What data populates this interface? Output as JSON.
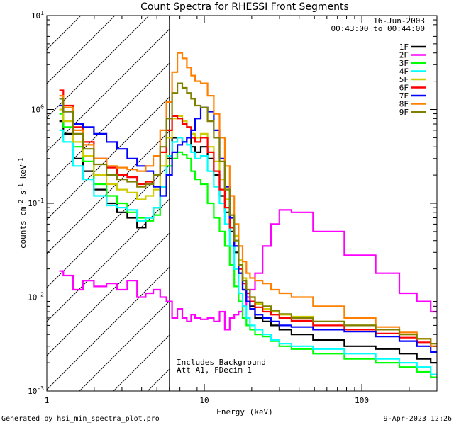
{
  "chart_data": {
    "type": "line",
    "title": "Count Spectra for RHESSI Front Segments",
    "xlabel": "Energy (keV)",
    "ylabel_parts": {
      "base": "counts cm",
      "exp1": "-2",
      "mid": " s",
      "exp2": "-1",
      "unit": " keV",
      "exp3": "-1"
    },
    "x_scale": "log",
    "y_scale": "log",
    "xlim": [
      1,
      300
    ],
    "ylim": [
      0.001,
      10
    ],
    "x_ticks": [
      {
        "v": 1,
        "label": "1"
      },
      {
        "v": 10,
        "label": "10"
      },
      {
        "v": 100,
        "label": "100"
      }
    ],
    "y_ticks": [
      {
        "v": 0.001,
        "base": "10",
        "exp": "-3"
      },
      {
        "v": 0.01,
        "base": "10",
        "exp": "-2"
      },
      {
        "v": 0.1,
        "base": "10",
        "exp": "-1"
      },
      {
        "v": 1,
        "base": "10",
        "exp": "0"
      },
      {
        "v": 10,
        "base": "10",
        "exp": "1"
      }
    ],
    "shaded_region_x": [
      1,
      6
    ],
    "threshold_x": 6,
    "annotations": {
      "date": "16-Jun-2003",
      "time_range": "00:43:00 to 00:44:00",
      "info_line1": "Includes Background",
      "info_line2": "Att A1, FDecim 1"
    },
    "series": [
      {
        "name": "1F",
        "color": "#000000",
        "x": [
          1.2,
          1.35,
          1.6,
          1.8,
          2.2,
          2.6,
          3.0,
          3.5,
          4.0,
          4.5,
          5.0,
          5.5,
          6.0,
          6.5,
          7.0,
          7.5,
          8.0,
          8.5,
          9.0,
          10,
          11,
          12,
          13,
          14,
          15,
          16,
          17,
          18,
          19,
          20,
          22,
          25,
          28,
          32,
          40,
          60,
          100,
          150,
          200,
          250,
          300
        ],
        "y": [
          0.75,
          0.55,
          0.3,
          0.22,
          0.14,
          0.1,
          0.08,
          0.07,
          0.055,
          0.07,
          0.09,
          0.15,
          0.3,
          0.5,
          0.5,
          0.45,
          0.5,
          0.4,
          0.35,
          0.4,
          0.3,
          0.2,
          0.12,
          0.08,
          0.05,
          0.03,
          0.018,
          0.012,
          0.009,
          0.008,
          0.006,
          0.0055,
          0.005,
          0.0045,
          0.004,
          0.0035,
          0.003,
          0.0028,
          0.0025,
          0.0022,
          0.002
        ]
      },
      {
        "name": "2F",
        "color": "#ff00ff",
        "x": [
          1.2,
          1.35,
          1.6,
          1.8,
          2.2,
          2.6,
          3.0,
          3.5,
          4.0,
          4.5,
          5.0,
          5.5,
          6.0,
          6.5,
          7.0,
          7.5,
          8.0,
          8.5,
          9.0,
          10,
          11,
          12,
          13,
          14,
          15,
          16,
          17,
          18,
          19,
          20,
          22,
          25,
          28,
          32,
          40,
          60,
          100,
          150,
          200,
          250,
          300
        ],
        "y": [
          0.019,
          0.017,
          0.012,
          0.015,
          0.013,
          0.014,
          0.012,
          0.015,
          0.01,
          0.011,
          0.012,
          0.01,
          0.009,
          0.006,
          0.0075,
          0.006,
          0.0055,
          0.0065,
          0.006,
          0.0058,
          0.006,
          0.0055,
          0.007,
          0.0045,
          0.006,
          0.0065,
          0.007,
          0.008,
          0.01,
          0.012,
          0.018,
          0.035,
          0.06,
          0.085,
          0.08,
          0.05,
          0.028,
          0.018,
          0.011,
          0.009,
          0.007
        ]
      },
      {
        "name": "3F",
        "color": "#00ff00",
        "x": [
          1.2,
          1.35,
          1.6,
          1.8,
          2.2,
          2.6,
          3.0,
          3.5,
          4.0,
          4.5,
          5.0,
          5.5,
          6.0,
          6.5,
          7.0,
          7.5,
          8.0,
          8.5,
          9.0,
          10,
          11,
          12,
          13,
          14,
          15,
          16,
          17,
          18,
          19,
          20,
          22,
          25,
          28,
          32,
          40,
          60,
          100,
          150,
          200,
          250,
          300
        ],
        "y": [
          0.9,
          0.65,
          0.4,
          0.28,
          0.16,
          0.12,
          0.1,
          0.08,
          0.07,
          0.065,
          0.075,
          0.12,
          0.25,
          0.3,
          0.35,
          0.33,
          0.3,
          0.22,
          0.18,
          0.16,
          0.1,
          0.07,
          0.05,
          0.035,
          0.022,
          0.013,
          0.009,
          0.006,
          0.005,
          0.0045,
          0.004,
          0.0038,
          0.0034,
          0.003,
          0.0028,
          0.0025,
          0.0022,
          0.002,
          0.0018,
          0.0016,
          0.0014
        ]
      },
      {
        "name": "4F",
        "color": "#00ffff",
        "x": [
          1.2,
          1.35,
          1.6,
          1.8,
          2.2,
          2.6,
          3.0,
          3.5,
          4.0,
          4.5,
          5.0,
          5.5,
          6.0,
          6.5,
          7.0,
          7.5,
          8.0,
          8.5,
          9.0,
          10,
          11,
          12,
          13,
          14,
          15,
          16,
          17,
          18,
          19,
          20,
          22,
          25,
          28,
          32,
          40,
          60,
          100,
          150,
          200,
          250,
          300
        ],
        "y": [
          0.6,
          0.45,
          0.25,
          0.18,
          0.12,
          0.095,
          0.09,
          0.085,
          0.065,
          0.07,
          0.09,
          0.15,
          0.32,
          0.45,
          0.5,
          0.45,
          0.42,
          0.35,
          0.3,
          0.32,
          0.22,
          0.15,
          0.1,
          0.06,
          0.035,
          0.02,
          0.011,
          0.008,
          0.006,
          0.005,
          0.0045,
          0.004,
          0.0035,
          0.0032,
          0.003,
          0.0028,
          0.0025,
          0.0022,
          0.002,
          0.0018,
          0.0015
        ]
      },
      {
        "name": "5F",
        "color": "#cccc00",
        "x": [
          1.2,
          1.35,
          1.6,
          1.8,
          2.2,
          2.6,
          3.0,
          3.5,
          4.0,
          4.5,
          5.0,
          5.5,
          6.0,
          6.5,
          7.0,
          7.5,
          8.0,
          8.5,
          9.0,
          10,
          11,
          12,
          13,
          14,
          15,
          16,
          17,
          18,
          19,
          20,
          22,
          25,
          28,
          32,
          40,
          60,
          100,
          150,
          200,
          250,
          300
        ],
        "y": [
          1.0,
          0.75,
          0.45,
          0.32,
          0.2,
          0.16,
          0.14,
          0.13,
          0.11,
          0.12,
          0.14,
          0.25,
          0.5,
          0.8,
          0.85,
          0.75,
          0.65,
          0.55,
          0.5,
          0.55,
          0.4,
          0.28,
          0.18,
          0.11,
          0.07,
          0.045,
          0.025,
          0.016,
          0.012,
          0.01,
          0.0085,
          0.0075,
          0.007,
          0.0065,
          0.0062,
          0.0055,
          0.005,
          0.0045,
          0.004,
          0.0036,
          0.0032
        ]
      },
      {
        "name": "6F",
        "color": "#ff0000",
        "x": [
          1.2,
          1.35,
          1.6,
          1.8,
          2.2,
          2.6,
          3.0,
          3.5,
          4.0,
          4.5,
          5.0,
          5.5,
          6.0,
          6.5,
          7.0,
          7.5,
          8.0,
          8.5,
          9.0,
          10,
          11,
          12,
          13,
          14,
          15,
          16,
          17,
          18,
          19,
          20,
          22,
          25,
          28,
          32,
          40,
          60,
          100,
          150,
          200,
          250,
          300
        ],
        "y": [
          1.6,
          1.1,
          0.65,
          0.45,
          0.3,
          0.24,
          0.2,
          0.19,
          0.16,
          0.17,
          0.2,
          0.35,
          0.6,
          0.85,
          0.8,
          0.7,
          0.65,
          0.5,
          0.45,
          0.5,
          0.35,
          0.22,
          0.14,
          0.09,
          0.055,
          0.035,
          0.02,
          0.014,
          0.011,
          0.009,
          0.0078,
          0.007,
          0.0065,
          0.006,
          0.0056,
          0.005,
          0.0045,
          0.0041,
          0.0037,
          0.0033,
          0.003
        ]
      },
      {
        "name": "7F",
        "color": "#0000ff",
        "x": [
          1.2,
          1.35,
          1.6,
          1.8,
          2.2,
          2.6,
          3.0,
          3.5,
          4.0,
          4.5,
          5.0,
          5.5,
          6.0,
          6.5,
          7.0,
          7.5,
          8.0,
          8.5,
          9.0,
          10,
          11,
          12,
          13,
          14,
          15,
          16,
          17,
          18,
          19,
          20,
          22,
          25,
          28,
          32,
          40,
          60,
          100,
          150,
          200,
          250,
          300
        ],
        "y": [
          1.1,
          0.95,
          0.7,
          0.65,
          0.55,
          0.45,
          0.38,
          0.3,
          0.25,
          0.22,
          0.15,
          0.12,
          0.2,
          0.35,
          0.42,
          0.45,
          0.5,
          0.6,
          0.8,
          1.05,
          0.95,
          0.6,
          0.3,
          0.15,
          0.07,
          0.035,
          0.018,
          0.012,
          0.009,
          0.0075,
          0.0065,
          0.006,
          0.0055,
          0.005,
          0.0048,
          0.0045,
          0.0043,
          0.0038,
          0.0034,
          0.003,
          0.0026
        ]
      },
      {
        "name": "8F",
        "color": "#ff8000",
        "x": [
          1.2,
          1.35,
          1.6,
          1.8,
          2.2,
          2.6,
          3.0,
          3.5,
          4.0,
          4.5,
          5.0,
          5.5,
          6.0,
          6.5,
          7.0,
          7.5,
          8.0,
          8.5,
          9.0,
          10,
          11,
          12,
          13,
          14,
          15,
          16,
          17,
          18,
          19,
          20,
          22,
          25,
          28,
          32,
          40,
          60,
          100,
          150,
          200,
          250,
          300
        ],
        "y": [
          1.4,
          1.05,
          0.6,
          0.42,
          0.3,
          0.25,
          0.24,
          0.23,
          0.22,
          0.25,
          0.32,
          0.6,
          1.2,
          2.5,
          4.0,
          3.5,
          2.8,
          2.3,
          2.0,
          1.9,
          1.4,
          0.9,
          0.5,
          0.25,
          0.12,
          0.06,
          0.035,
          0.024,
          0.018,
          0.016,
          0.015,
          0.014,
          0.012,
          0.011,
          0.01,
          0.008,
          0.006,
          0.0048,
          0.0042,
          0.0036,
          0.003
        ]
      },
      {
        "name": "9F",
        "color": "#808000",
        "x": [
          1.2,
          1.35,
          1.6,
          1.8,
          2.2,
          2.6,
          3.0,
          3.5,
          4.0,
          4.5,
          5.0,
          5.5,
          6.0,
          6.5,
          7.0,
          7.5,
          8.0,
          8.5,
          9.0,
          10,
          11,
          12,
          13,
          14,
          15,
          16,
          17,
          18,
          19,
          20,
          22,
          25,
          28,
          32,
          40,
          60,
          100,
          150,
          200,
          250,
          300
        ],
        "y": [
          1.3,
          0.95,
          0.55,
          0.38,
          0.26,
          0.2,
          0.18,
          0.17,
          0.15,
          0.16,
          0.2,
          0.4,
          0.8,
          1.5,
          1.9,
          1.7,
          1.5,
          1.3,
          1.1,
          1.05,
          0.75,
          0.5,
          0.28,
          0.14,
          0.075,
          0.04,
          0.022,
          0.015,
          0.012,
          0.01,
          0.0088,
          0.008,
          0.0072,
          0.0066,
          0.006,
          0.0055,
          0.005,
          0.0045,
          0.004,
          0.0036,
          0.0032
        ]
      }
    ]
  },
  "footer": {
    "left": "Generated by hsi_min_spectra_plot.pro",
    "right": "9-Apr-2023 12:26"
  }
}
